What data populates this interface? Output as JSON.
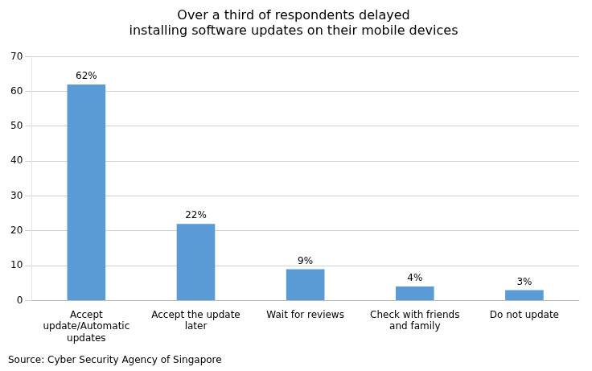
{
  "chart_data": {
    "type": "bar",
    "title": "Over a third of respondents delayed\ninstalling software updates on their mobile devices",
    "categories": [
      "Accept\nupdate/Automatic\nupdates",
      "Accept the update\nlater",
      "Wait for reviews",
      "Check with friends\nand family",
      "Do not update"
    ],
    "values": [
      62,
      22,
      9,
      4,
      3
    ],
    "value_labels": [
      "62%",
      "22%",
      "9%",
      "4%",
      "3%"
    ],
    "data_labels": true,
    "color": "#5B9BD5",
    "ylim": [
      0,
      70
    ],
    "yticks": [
      0,
      10,
      20,
      30,
      40,
      50,
      60,
      70
    ],
    "grid": true,
    "annotations": [
      "Source: Cyber Security Agency of Singapore"
    ]
  }
}
